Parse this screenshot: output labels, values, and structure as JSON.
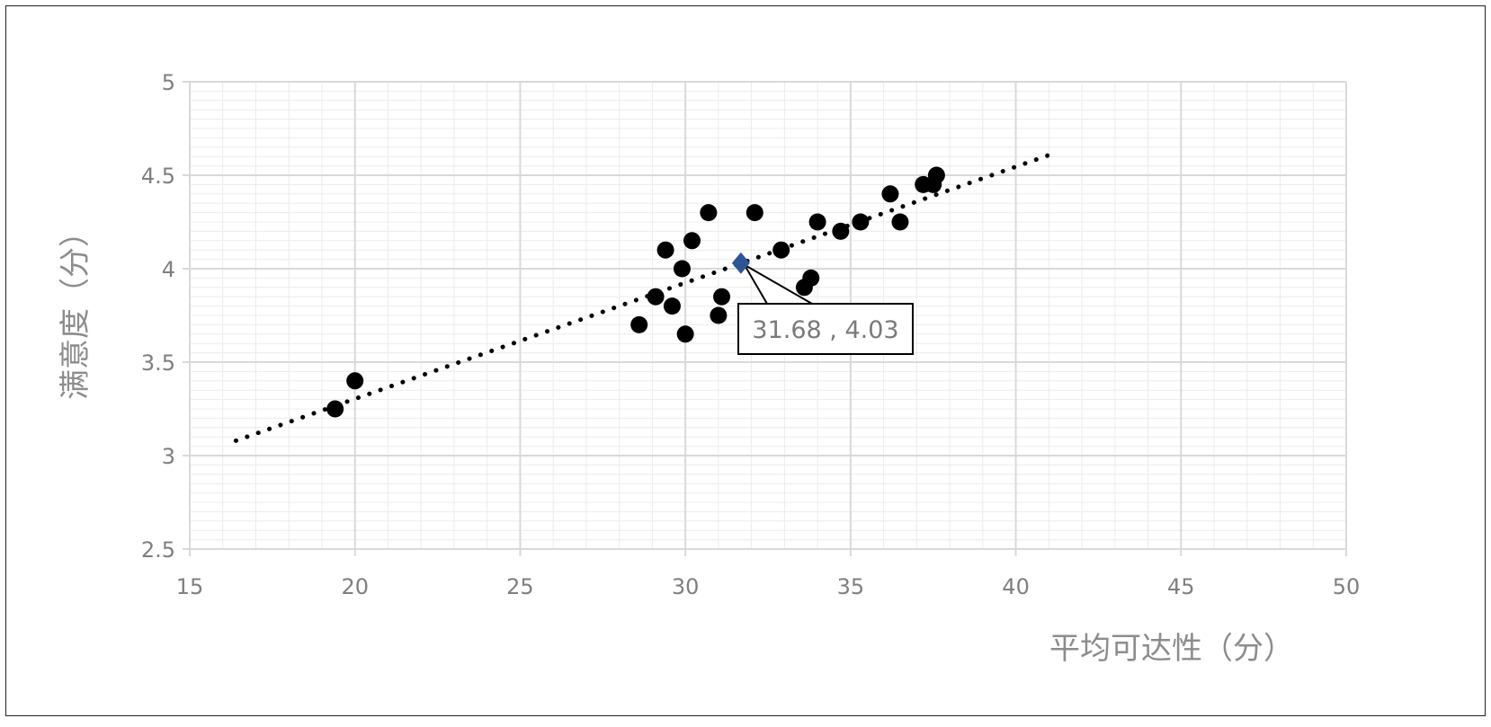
{
  "chart_data": {
    "type": "scatter",
    "xlabel": "平均可达性（分）",
    "ylabel": "满意度（分）",
    "xlim": [
      15,
      50
    ],
    "ylim": [
      2.5,
      5
    ],
    "xticks": [
      "15",
      "20",
      "25",
      "30",
      "35",
      "40",
      "45",
      "50"
    ],
    "yticks": [
      "2.5",
      "3",
      "3.5",
      "4",
      "4.5",
      "5"
    ],
    "x_tick_values": [
      15,
      20,
      25,
      30,
      35,
      40,
      45,
      50
    ],
    "y_tick_values": [
      2.5,
      3,
      3.5,
      4,
      4.5,
      5
    ],
    "grid": true,
    "series": [
      {
        "points": [
          [
            19.4,
            3.25
          ],
          [
            20.0,
            3.4
          ],
          [
            28.6,
            3.7
          ],
          [
            29.1,
            3.85
          ],
          [
            29.4,
            4.1
          ],
          [
            29.6,
            3.8
          ],
          [
            29.9,
            4.0
          ],
          [
            30.0,
            3.65
          ],
          [
            30.2,
            4.15
          ],
          [
            30.7,
            4.3
          ],
          [
            31.0,
            3.75
          ],
          [
            31.1,
            3.85
          ],
          [
            32.1,
            4.3
          ],
          [
            32.9,
            4.1
          ],
          [
            33.6,
            3.9
          ],
          [
            33.8,
            3.95
          ],
          [
            34.0,
            4.25
          ],
          [
            34.7,
            4.2
          ],
          [
            35.3,
            4.25
          ],
          [
            36.2,
            4.4
          ],
          [
            36.5,
            4.25
          ],
          [
            37.2,
            4.45
          ],
          [
            37.5,
            4.45
          ],
          [
            37.6,
            4.5
          ]
        ],
        "color": "#000000",
        "marker": "circle"
      }
    ],
    "highlight": {
      "x": 31.68,
      "y": 4.03,
      "label": "31.68 , 4.03",
      "color": "#2f5597",
      "marker": "diamond"
    },
    "trendline": {
      "style": "dotted",
      "x_start": 16.4,
      "x_end": 41.2,
      "y_start": 3.08,
      "y_end": 4.62,
      "color": "#000000"
    }
  }
}
